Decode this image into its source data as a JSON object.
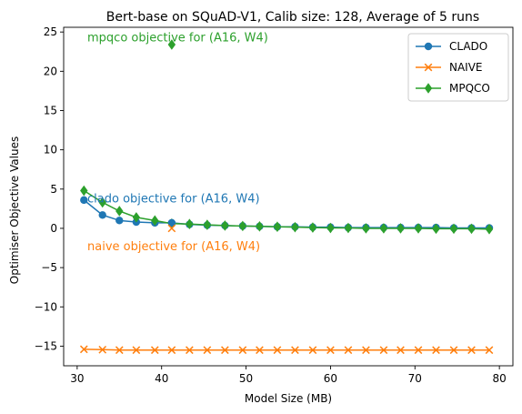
{
  "chart_data": {
    "type": "line",
    "title": "Bert-base on SQuAD-V1, Calib size: 128, Average of 5 runs",
    "xlabel": "Model Size (MB)",
    "ylabel": "Optimiser Objective Values",
    "xlim": [
      28.4,
      81.6
    ],
    "ylim": [
      -17.5,
      25.6
    ],
    "xticks": [
      30,
      40,
      50,
      60,
      70,
      80
    ],
    "yticks": [
      -15,
      -10,
      -5,
      0,
      5,
      10,
      15,
      20,
      25
    ],
    "grid": false,
    "legend_position": "top-right",
    "series": [
      {
        "name": "CLADO",
        "color": "#1f77b4",
        "marker": "circle",
        "x": [
          30.8,
          33.0,
          35.0,
          37.0,
          39.2,
          41.2,
          43.3,
          45.4,
          47.5,
          49.6,
          51.6,
          53.7,
          55.8,
          57.9,
          60.0,
          62.1,
          64.2,
          66.3,
          68.3,
          70.4,
          72.5,
          74.6,
          76.7,
          78.8
        ],
        "values": [
          3.6,
          1.7,
          1.0,
          0.8,
          0.7,
          0.7,
          0.5,
          0.4,
          0.35,
          0.3,
          0.25,
          0.2,
          0.2,
          0.15,
          0.15,
          0.1,
          0.1,
          0.1,
          0.1,
          0.1,
          0.1,
          0.05,
          0.05,
          0.05
        ]
      },
      {
        "name": "NAIVE",
        "color": "#ff7f0e",
        "marker": "x",
        "x": [
          30.8,
          33.0,
          35.0,
          37.0,
          39.2,
          41.2,
          43.3,
          45.4,
          47.5,
          49.6,
          51.6,
          53.7,
          55.8,
          57.9,
          60.0,
          62.1,
          64.2,
          66.3,
          68.3,
          70.4,
          72.5,
          74.6,
          76.7,
          78.8
        ],
        "values": [
          -15.4,
          -15.45,
          -15.5,
          -15.5,
          -15.5,
          -15.5,
          -15.5,
          -15.5,
          -15.5,
          -15.5,
          -15.5,
          -15.5,
          -15.5,
          -15.5,
          -15.5,
          -15.5,
          -15.5,
          -15.5,
          -15.5,
          -15.5,
          -15.5,
          -15.5,
          -15.5,
          -15.5
        ]
      },
      {
        "name": "MPQCO",
        "color": "#2ca02c",
        "marker": "diamond",
        "x": [
          30.8,
          33.0,
          35.0,
          37.0,
          39.2,
          41.2,
          43.3,
          45.4,
          47.5,
          49.6,
          51.6,
          53.7,
          55.8,
          57.9,
          60.0,
          62.1,
          64.2,
          66.3,
          68.3,
          70.4,
          72.5,
          74.6,
          76.7,
          78.8
        ],
        "values": [
          4.8,
          3.3,
          2.2,
          1.4,
          1.0,
          0.6,
          0.55,
          0.45,
          0.35,
          0.3,
          0.25,
          0.2,
          0.15,
          0.1,
          0.05,
          0.05,
          0.0,
          0.0,
          0.0,
          0.0,
          -0.05,
          -0.05,
          -0.05,
          -0.1
        ]
      }
    ],
    "single_points": [
      {
        "series": "CLADO",
        "marker": "circle",
        "color": "#1f77b4",
        "x": 41.2,
        "y": 0.7
      },
      {
        "series": "NAIVE",
        "marker": "x",
        "color": "#ff7f0e",
        "x": 41.2,
        "y": 0.0
      },
      {
        "series": "MPQCO",
        "marker": "diamond",
        "color": "#2ca02c",
        "x": 41.2,
        "y": 23.4
      }
    ],
    "annotations": [
      {
        "text": "mpqco objective for (A16, W4)",
        "color": "#2ca02c",
        "x": 31.2,
        "y": 24.4
      },
      {
        "text": "clado objective for (A16, W4)",
        "color": "#1f77b4",
        "x": 31.2,
        "y": 3.9
      },
      {
        "text": "naive objective for (A16, W4)",
        "color": "#ff7f0e",
        "x": 31.2,
        "y": -2.2
      }
    ]
  }
}
